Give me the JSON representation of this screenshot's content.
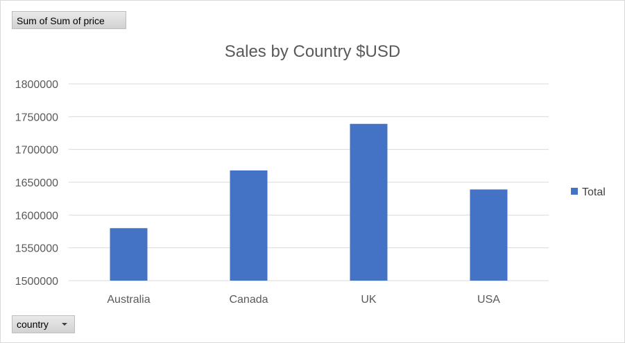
{
  "value_field_button": {
    "label": "Sum of Sum of price"
  },
  "axis_field_button": {
    "label": "country"
  },
  "colors": {
    "series": "#4472c4",
    "gridline": "#d9d9d9",
    "text": "#595959"
  },
  "chart_data": {
    "type": "bar",
    "title": "Sales by Country $USD",
    "categories": [
      "Australia",
      "Canada",
      "UK",
      "USA"
    ],
    "series": [
      {
        "name": "Total",
        "values": [
          1580000,
          1668000,
          1739000,
          1639000
        ]
      }
    ],
    "ylim": [
      1500000,
      1800000
    ],
    "yticks": [
      "1500000",
      "1550000",
      "1600000",
      "1650000",
      "1700000",
      "1750000",
      "1800000"
    ],
    "grid": true,
    "legend_position": "right"
  }
}
